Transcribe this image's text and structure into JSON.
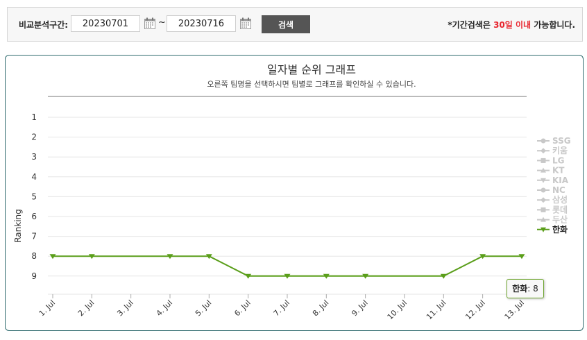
{
  "filter": {
    "label": "비교분석구간:",
    "start_date": "20230701",
    "separator": "~",
    "end_date": "20230716",
    "search_label": "검색",
    "notice_prefix": "*기간검색은 ",
    "notice_highlight": "30일 이내",
    "notice_suffix": " 가능합니다.",
    "highlight_color": "#e8262f"
  },
  "tooltip": {
    "team": "한화",
    "separator": ": ",
    "value": "8"
  },
  "chart_data": {
    "type": "line",
    "title": "일자별 순위 그래프",
    "subtitle": "오른쪽 팀명을 선택하시면 팀별로 그래프를 확인하실 수 있습니다.",
    "ylabel": "Ranking",
    "xlabel": "",
    "ylim": [
      1,
      9
    ],
    "y_reversed": true,
    "yticks": [
      "1",
      "2",
      "3",
      "4",
      "5",
      "6",
      "7",
      "8",
      "9"
    ],
    "categories": [
      "1. Jul",
      "2. Jul",
      "3. Jul",
      "4. Jul",
      "5. Jul",
      "6. Jul",
      "7. Jul",
      "8. Jul",
      "9. Jul",
      "10. Jul",
      "11. Jul",
      "12. Jul",
      "13. Jul"
    ],
    "grid": true,
    "legend_position": "right",
    "legend": [
      {
        "name": "SSG",
        "marker": "circle",
        "active": false
      },
      {
        "name": "키움",
        "marker": "diamond",
        "active": false
      },
      {
        "name": "LG",
        "marker": "square",
        "active": false
      },
      {
        "name": "KT",
        "marker": "triangle",
        "active": false
      },
      {
        "name": "KIA",
        "marker": "triangle-down",
        "active": false
      },
      {
        "name": "NC",
        "marker": "circle",
        "active": false
      },
      {
        "name": "삼성",
        "marker": "diamond",
        "active": false
      },
      {
        "name": "롯데",
        "marker": "square",
        "active": false
      },
      {
        "name": "두산",
        "marker": "triangle",
        "active": false
      },
      {
        "name": "한화",
        "marker": "triangle-down",
        "active": true
      }
    ],
    "series": [
      {
        "name": "한화",
        "color": "#5a9e1a",
        "marker": "triangle-down",
        "points": [
          {
            "x": "1. Jul",
            "y": 8
          },
          {
            "x": "2. Jul",
            "y": 8
          },
          {
            "x": "4. Jul",
            "y": 8
          },
          {
            "x": "5. Jul",
            "y": 8
          },
          {
            "x": "6. Jul",
            "y": 9
          },
          {
            "x": "7. Jul",
            "y": 9
          },
          {
            "x": "8. Jul",
            "y": 9
          },
          {
            "x": "9. Jul",
            "y": 9
          },
          {
            "x": "11. Jul",
            "y": 9
          },
          {
            "x": "12. Jul",
            "y": 8
          },
          {
            "x": "13. Jul",
            "y": 8
          }
        ]
      }
    ],
    "colors": {
      "inactive_legend": "#c8c8c8",
      "active_legend_text": "#222222",
      "grid": "#e6e6e6",
      "axis": "#aaaaaa"
    }
  }
}
